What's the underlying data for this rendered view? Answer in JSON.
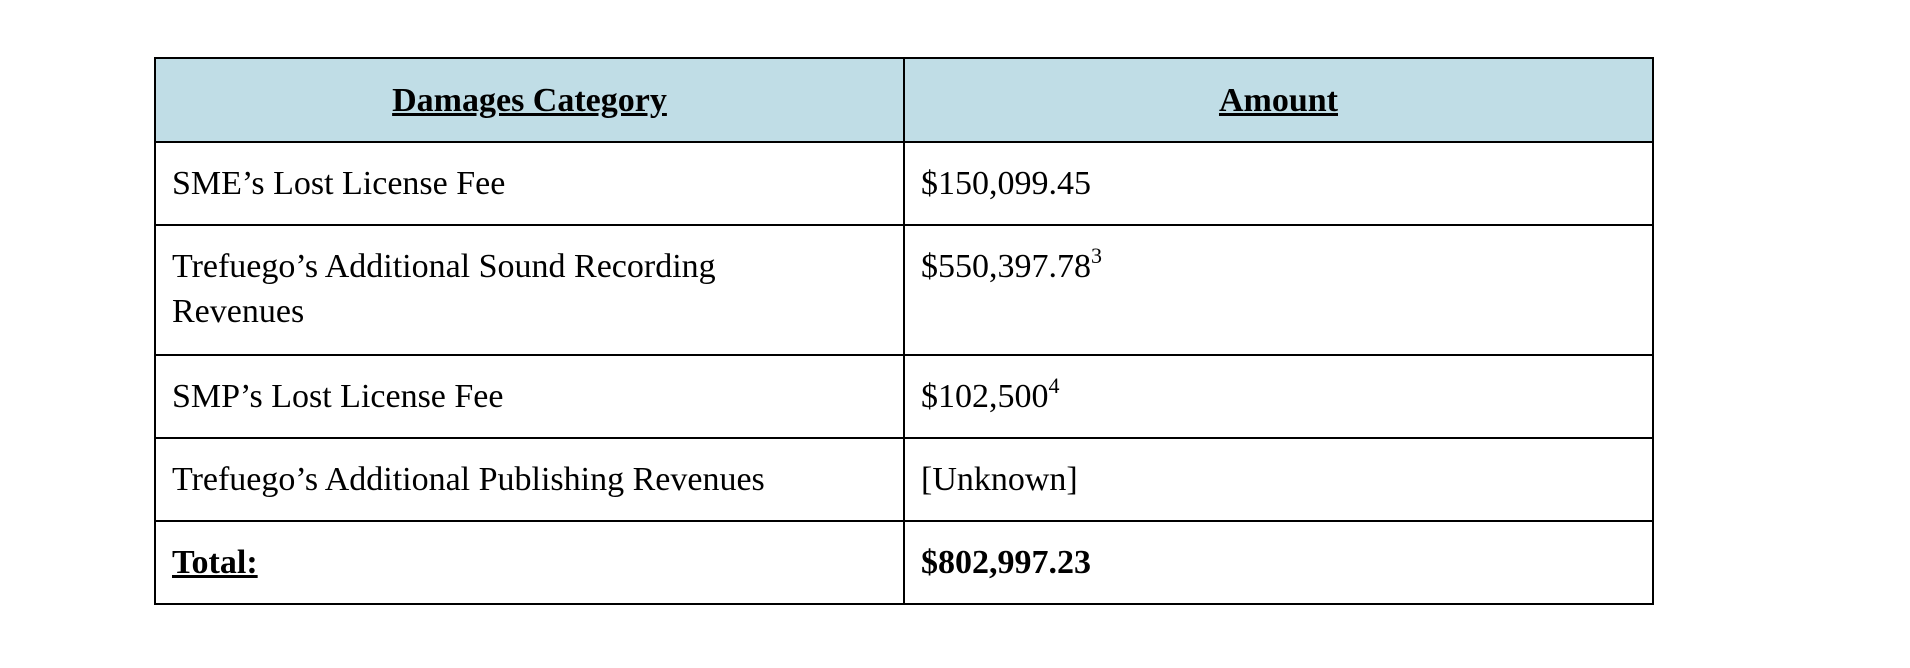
{
  "table": {
    "headers": [
      "Damages Category",
      "Amount"
    ],
    "rows": [
      {
        "category": "SME’s Lost License Fee",
        "amount": "$150,099.45",
        "footnote": ""
      },
      {
        "category": "Trefuego’s Additional Sound Recording Revenues",
        "amount": "$550,397.78",
        "footnote": "3"
      },
      {
        "category": "SMP’s Lost License Fee",
        "amount": "$102,500",
        "footnote": "4"
      },
      {
        "category": "Trefuego’s Additional Publishing Revenues",
        "amount": "[Unknown]",
        "footnote": ""
      }
    ],
    "total": {
      "label": "Total:",
      "amount": "$802,997.23"
    }
  },
  "colors": {
    "header_background": "#c0dde6",
    "border": "#000000"
  }
}
